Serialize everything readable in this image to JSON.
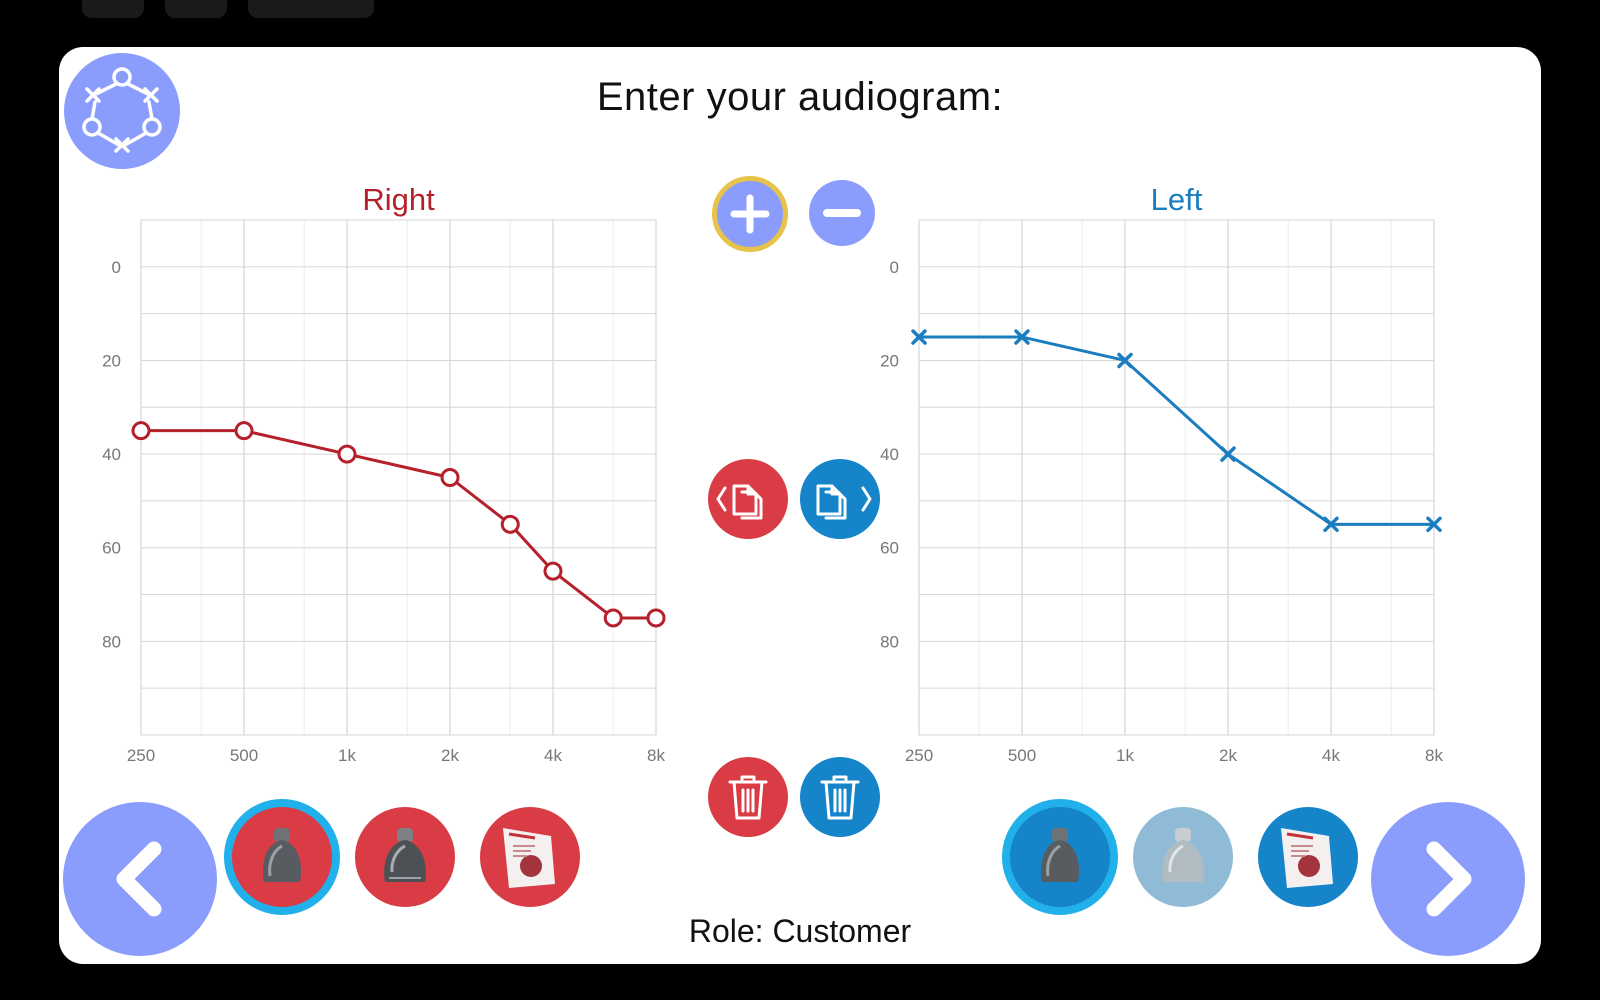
{
  "header": {
    "title": "Enter your audiogram:"
  },
  "footer": {
    "role_label": "Role: Customer"
  },
  "colors": {
    "right_ear": "#b5202b",
    "left_ear": "#1a7dbf",
    "accent_purple": "#8b9dfc",
    "selection_ring": "#22b0ea",
    "add_ring": "#e7c34a",
    "grid": "#d6d6d6"
  },
  "icons": {
    "logo": "audiogram-logo-icon",
    "add": "plus-icon",
    "remove": "minus-icon",
    "copy_to_right": "copy-left-icon",
    "copy_to_left": "copy-right-icon",
    "delete_right": "trash-icon",
    "delete_left": "trash-icon",
    "back": "chevron-left-icon",
    "next": "chevron-right-icon",
    "dome_closed": "dome-closed-icon",
    "dome_open": "dome-open-icon",
    "dome_package": "dome-package-icon"
  },
  "device_options": {
    "right": [
      {
        "icon": "dome-closed-icon",
        "selected": true
      },
      {
        "icon": "dome-open-icon",
        "selected": false
      },
      {
        "icon": "dome-package-icon",
        "selected": false
      }
    ],
    "left": [
      {
        "icon": "dome-closed-icon",
        "selected": true
      },
      {
        "icon": "dome-open-icon",
        "selected": false
      },
      {
        "icon": "dome-package-icon",
        "selected": false
      }
    ]
  },
  "chart_data": [
    {
      "type": "line",
      "title": "Right",
      "color": "#b5202b",
      "marker": "circle",
      "x_ticks": [
        "250",
        "500",
        "1k",
        "2k",
        "4k",
        "8k"
      ],
      "x_scale": "log2",
      "ylim": [
        0,
        100
      ],
      "y_inverted": true,
      "y_ticks": [
        0,
        20,
        40,
        60,
        80
      ],
      "grid": true,
      "points": [
        {
          "x": 250,
          "y": 35
        },
        {
          "x": 500,
          "y": 35
        },
        {
          "x": 1000,
          "y": 40
        },
        {
          "x": 2000,
          "y": 45
        },
        {
          "x": 3000,
          "y": 55
        },
        {
          "x": 4000,
          "y": 65
        },
        {
          "x": 6000,
          "y": 75
        },
        {
          "x": 8000,
          "y": 75
        }
      ]
    },
    {
      "type": "line",
      "title": "Left",
      "color": "#1a7dbf",
      "marker": "cross",
      "x_ticks": [
        "250",
        "500",
        "1k",
        "2k",
        "4k",
        "8k"
      ],
      "x_scale": "log2",
      "ylim": [
        0,
        100
      ],
      "y_inverted": true,
      "y_ticks": [
        0,
        20,
        40,
        60,
        80
      ],
      "grid": true,
      "points": [
        {
          "x": 250,
          "y": 15
        },
        {
          "x": 500,
          "y": 15
        },
        {
          "x": 1000,
          "y": 20
        },
        {
          "x": 2000,
          "y": 40
        },
        {
          "x": 4000,
          "y": 55
        },
        {
          "x": 8000,
          "y": 55
        }
      ]
    }
  ]
}
